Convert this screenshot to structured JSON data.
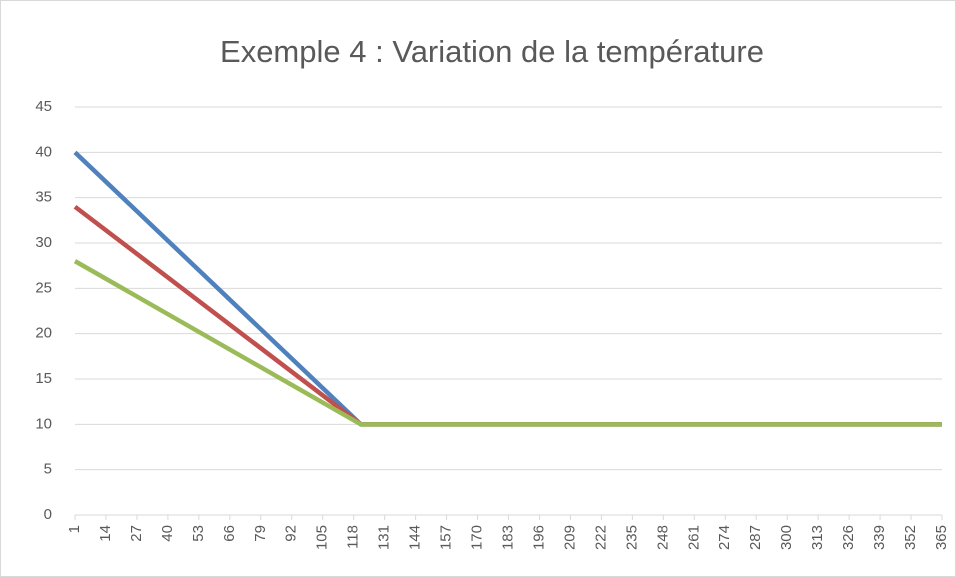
{
  "chart_data": {
    "type": "line",
    "title": "Exemple 4 : Variation de la température",
    "x": [
      1,
      121,
      365
    ],
    "series": [
      {
        "color": "#4f81bd",
        "values": [
          40,
          10,
          10
        ]
      },
      {
        "color": "#c0504d",
        "values": [
          34,
          10,
          10
        ]
      },
      {
        "color": "#9bbb59",
        "values": [
          28,
          10,
          10
        ]
      }
    ],
    "xlim": [
      1,
      365
    ],
    "xticks": [
      1,
      14,
      27,
      40,
      53,
      66,
      79,
      92,
      105,
      118,
      131,
      144,
      157,
      170,
      183,
      196,
      209,
      222,
      235,
      248,
      261,
      274,
      287,
      300,
      313,
      326,
      339,
      352,
      365
    ],
    "ylim": [
      0,
      45
    ],
    "yticks": [
      0,
      5,
      10,
      15,
      20,
      25,
      30,
      35,
      40,
      45
    ],
    "grid": true
  }
}
